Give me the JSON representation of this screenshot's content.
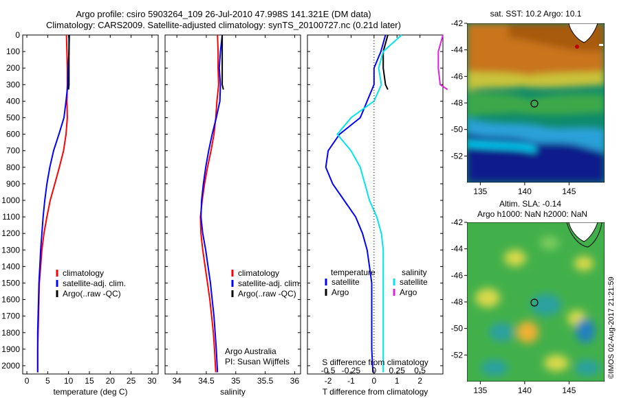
{
  "header": {
    "line1": "Argo profile: csiro 5903264_109 26-Jul-2010 47.998S 141.321E (DM data)",
    "line2": "Climatology: CARS2009. Satellite-adjusted climatology: synTS_20100727.nc (0.21d later)"
  },
  "depth_ticks": [
    "0",
    "100",
    "200",
    "300",
    "400",
    "500",
    "600",
    "700",
    "800",
    "900",
    "1000",
    "1100",
    "1200",
    "1300",
    "1400",
    "1500",
    "1600",
    "1700",
    "1800",
    "1900",
    "2000"
  ],
  "colors": {
    "climatology": "#ff0000",
    "satellite": "#0000ff",
    "argo": "#000000",
    "sal_satellite": "#00e5ee",
    "sal_argo": "#e020e0"
  },
  "chart_data": [
    {
      "type": "line",
      "xlabel": "temperature (deg C)",
      "xlim": [
        -1,
        31.5
      ],
      "xticks": [
        "0",
        "5",
        "10",
        "15",
        "20",
        "25",
        "30"
      ],
      "ylim": [
        0,
        2050
      ],
      "legend": [
        "climatology",
        "satellite-adj. clim.",
        "Argo(..raw -QC)"
      ],
      "series": [
        {
          "name": "climatology",
          "color": "#ff0000",
          "x": [
            9.5,
            9.6,
            9.7,
            9.7,
            9.6,
            9.7,
            9.4,
            8.8,
            7.8,
            6.7,
            5.6,
            4.8,
            4.1,
            3.6,
            3.3,
            3.0,
            2.9,
            2.8,
            2.7,
            2.6,
            2.6
          ],
          "y": [
            0,
            100,
            200,
            300,
            400,
            500,
            600,
            700,
            800,
            900,
            1000,
            1100,
            1200,
            1300,
            1400,
            1500,
            1600,
            1700,
            1800,
            1900,
            2040
          ]
        },
        {
          "name": "satellite-adj. clim.",
          "color": "#0000ff",
          "x": [
            10.2,
            10.1,
            9.9,
            9.8,
            9.4,
            8.9,
            7.7,
            6.4,
            5.5,
            4.8,
            4.3,
            3.9,
            3.6,
            3.3,
            3.1,
            2.9,
            2.8,
            2.7,
            2.6,
            2.6,
            2.6
          ],
          "y": [
            0,
            100,
            200,
            300,
            400,
            500,
            600,
            700,
            800,
            900,
            1000,
            1100,
            1200,
            1300,
            1400,
            1500,
            1600,
            1700,
            1800,
            1900,
            2040
          ]
        },
        {
          "name": "Argo(..raw -QC)",
          "color": "#000000",
          "x": [
            10.1,
            10.1,
            10.1,
            10.1,
            10.0
          ],
          "y": [
            0,
            100,
            200,
            300,
            330
          ]
        }
      ]
    },
    {
      "type": "line",
      "xlabel": "salinity",
      "xlim": [
        33.8,
        36.1
      ],
      "xticks": [
        "34",
        "34.5",
        "35",
        "35.5",
        "36"
      ],
      "ylim": [
        0,
        2050
      ],
      "legend": [
        "climatology",
        "satellite-adj. clim.",
        "Argo(..raw -QC)"
      ],
      "annotation": [
        "Argo Australia",
        "PI: Susan Wijffels"
      ],
      "series": [
        {
          "name": "climatology",
          "color": "#ff0000",
          "x": [
            34.69,
            34.7,
            34.7,
            34.71,
            34.68,
            34.66,
            34.63,
            34.58,
            34.52,
            34.47,
            34.43,
            34.4,
            34.41,
            34.44,
            34.48,
            34.52,
            34.56,
            34.59,
            34.62,
            34.64,
            34.66
          ],
          "y": [
            0,
            100,
            200,
            300,
            400,
            500,
            600,
            700,
            800,
            900,
            1000,
            1100,
            1200,
            1300,
            1400,
            1500,
            1600,
            1700,
            1800,
            1900,
            2040
          ]
        },
        {
          "name": "satellite-adj. clim.",
          "color": "#0000ff",
          "x": [
            34.77,
            34.74,
            34.72,
            34.74,
            34.73,
            34.67,
            34.6,
            34.54,
            34.49,
            34.45,
            34.42,
            34.41,
            34.44,
            34.49,
            34.53,
            34.57,
            34.6,
            34.63,
            34.65,
            34.67,
            34.69
          ],
          "y": [
            0,
            100,
            200,
            300,
            400,
            500,
            600,
            700,
            800,
            900,
            1000,
            1100,
            1200,
            1300,
            1400,
            1500,
            1600,
            1700,
            1800,
            1900,
            2040
          ]
        },
        {
          "name": "Argo(..raw -QC)",
          "color": "#000000",
          "x": [
            34.77,
            34.77,
            34.77,
            34.77,
            34.79
          ],
          "y": [
            0,
            100,
            200,
            300,
            330
          ]
        }
      ]
    },
    {
      "type": "line",
      "xlabel": "T difference from climatology",
      "top_label": "S difference from climatology",
      "xlim": [
        -2.9,
        3.0
      ],
      "xticks": [
        "-2",
        "-1",
        "0",
        "1",
        "2"
      ],
      "top_ticks": [
        "-0.5",
        "-0.25",
        "0",
        "0.25",
        "0.5"
      ],
      "ylim": [
        0,
        2050
      ],
      "legend_headers": [
        "temperature",
        "salinity"
      ],
      "legend": [
        "satellite",
        "Argo",
        "satellite",
        "Argo"
      ],
      "series": [
        {
          "name": "satellite",
          "group": "temperature",
          "color": "#0000ff",
          "x": [
            0.5,
            0.3,
            0.0,
            0.0,
            -0.3,
            -0.6,
            -1.5,
            -2.0,
            -2.1,
            -1.8,
            -1.3,
            -0.8,
            -0.5,
            -0.3,
            -0.2,
            -0.1,
            -0.1,
            -0.1,
            -0.1,
            -0.1,
            -0.05
          ],
          "y": [
            0,
            100,
            200,
            300,
            400,
            500,
            600,
            700,
            800,
            900,
            1000,
            1100,
            1200,
            1300,
            1400,
            1500,
            1600,
            1700,
            1800,
            1900,
            2040
          ]
        },
        {
          "name": "Argo",
          "group": "temperature",
          "color": "#000000",
          "x": [
            0.6,
            0.4,
            0.4,
            0.5,
            0.6
          ],
          "y": [
            0,
            100,
            200,
            300,
            330
          ]
        },
        {
          "name": "satellite",
          "group": "salinity",
          "color": "#00e5ee",
          "x": [
            0.3,
            0.1,
            0.05,
            0.08,
            0.0,
            -0.25,
            -0.4,
            -0.25,
            -0.15,
            -0.1,
            -0.05,
            0.03,
            0.08,
            0.1,
            0.1,
            0.1,
            0.1,
            0.1,
            0.1,
            0.1,
            0.1
          ],
          "y": [
            0,
            100,
            200,
            300,
            400,
            500,
            600,
            700,
            800,
            900,
            1000,
            1100,
            1200,
            1300,
            1400,
            1500,
            1600,
            1700,
            1800,
            1900,
            2040
          ]
        },
        {
          "name": "Argo",
          "group": "salinity",
          "color": "#e020e0",
          "x": [
            0.75,
            0.7,
            0.7,
            0.72,
            0.8
          ],
          "y": [
            0,
            100,
            200,
            300,
            330
          ]
        }
      ]
    },
    {
      "type": "heatmap",
      "title": "sat. SST: 10.2 Argo: 10.1",
      "xlim": [
        133.5,
        149
      ],
      "ylim": [
        -54,
        -42
      ],
      "xticks": [
        "135",
        "140",
        "145"
      ],
      "yticks": [
        "-42",
        "-44",
        "-46",
        "-48",
        "-50",
        "-52"
      ],
      "marker": {
        "lon": 141.3,
        "lat": -48.0
      }
    },
    {
      "type": "heatmap",
      "title_lines": [
        "Altim. SLA: -0.14",
        "Argo h1000: NaN h2000: NaN"
      ],
      "xlim": [
        133.5,
        149
      ],
      "ylim": [
        -54,
        -42
      ],
      "xticks": [
        "135",
        "140",
        "145"
      ],
      "yticks": [
        "-42",
        "-44",
        "-46",
        "-48",
        "-50",
        "-52"
      ],
      "marker": {
        "lon": 141.3,
        "lat": -48.0
      }
    }
  ],
  "stamp": "©IMOS 02-Aug-2017 21:21:59"
}
